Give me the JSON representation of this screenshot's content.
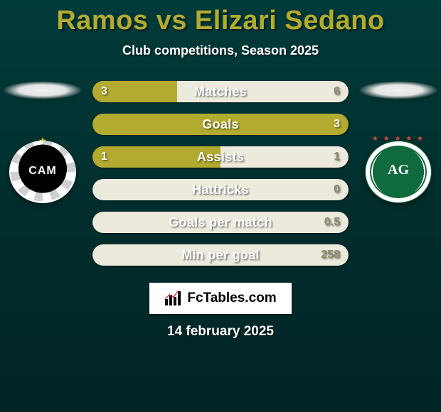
{
  "title": "Ramos vs Elizari Sedano",
  "subtitle": "Club competitions, Season 2025",
  "date_text": "14 february 2025",
  "colors": {
    "accent": "#b3ab2f",
    "bar_outline": "#b3ab2f",
    "bar_empty_track": "#eceadd",
    "bar_empty_track_dark": "#c7c4ab",
    "text": "#ffffff",
    "shadow": "rgba(0,0,0,0.55)"
  },
  "crest_left_text": "CAM",
  "crest_right_text": "AG",
  "brand_text": "FcTables.com",
  "bars": [
    {
      "label": "Matches",
      "left": "3",
      "right": "6",
      "left_pct": 33,
      "right_pct": 67,
      "left_color": "#b3ab2f",
      "right_color": "#eceadd",
      "text_color_left": "#ffffff",
      "text_color_right": "#8c8a6d"
    },
    {
      "label": "Goals",
      "left": "",
      "right": "3",
      "left_pct": 0,
      "right_pct": 100,
      "left_color": "#b3ab2f",
      "right_color": "#b3ab2f",
      "text_color_left": "#ffffff",
      "text_color_right": "#ffffff"
    },
    {
      "label": "Assists",
      "left": "1",
      "right": "1",
      "left_pct": 50,
      "right_pct": 50,
      "left_color": "#b3ab2f",
      "right_color": "#eceadd",
      "text_color_left": "#ffffff",
      "text_color_right": "#8c8a6d"
    },
    {
      "label": "Hattricks",
      "left": "",
      "right": "0",
      "left_pct": 0,
      "right_pct": 100,
      "left_color": "#b3ab2f",
      "right_color": "#eceadd",
      "text_color_left": "#ffffff",
      "text_color_right": "#8c8a6d"
    },
    {
      "label": "Goals per match",
      "left": "",
      "right": "0.5",
      "left_pct": 0,
      "right_pct": 100,
      "left_color": "#b3ab2f",
      "right_color": "#eceadd",
      "text_color_left": "#ffffff",
      "text_color_right": "#8c8a6d"
    },
    {
      "label": "Min per goal",
      "left": "",
      "right": "258",
      "left_pct": 0,
      "right_pct": 100,
      "left_color": "#b3ab2f",
      "right_color": "#eceadd",
      "text_color_left": "#ffffff",
      "text_color_right": "#8c8a6d"
    }
  ]
}
